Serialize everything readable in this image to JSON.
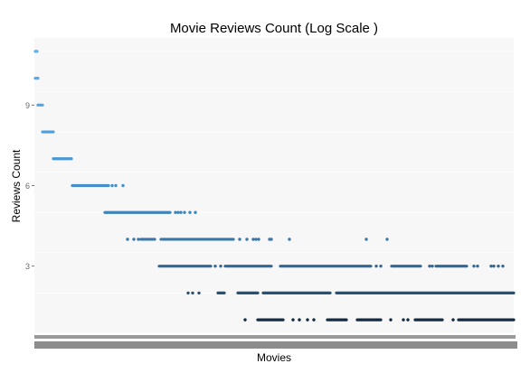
{
  "chart_data": {
    "type": "scatter",
    "title": "Movie Reviews Count (Log Scale )",
    "xlabel": "Movies",
    "ylabel": "Reviews Count",
    "y_ticks": [
      3,
      6,
      9
    ],
    "ylim": [
      0.5,
      11.5
    ],
    "grid": true,
    "legend": "none",
    "colors": {
      "low": "#132b43",
      "high": "#56b1f7",
      "panel": "#f7f7f7",
      "gridline": "#ffffff"
    },
    "color_encoding": "gradient by y value",
    "x_axis_note": "thousands of overlapping movie names rendered as an illegible grey band",
    "series": [
      {
        "y": 11,
        "x": [
          [
            1,
            3
          ]
        ]
      },
      {
        "y": 10,
        "x": [
          [
            1,
            4
          ]
        ]
      },
      {
        "y": 9,
        "x": [
          [
            4,
            9
          ]
        ]
      },
      {
        "y": 8,
        "x": [
          [
            9,
            21
          ]
        ]
      },
      {
        "y": 7,
        "x": [
          [
            21,
            41
          ]
        ]
      },
      {
        "y": 6,
        "x": [
          [
            42,
            82
          ],
          86,
          90,
          98
        ]
      },
      {
        "y": 5,
        "x": [
          [
            78,
            150
          ],
          156,
          159,
          162,
          166,
          172,
          178
        ]
      },
      {
        "y": 4,
        "x": [
          103,
          110,
          115,
          [
            118,
            133
          ],
          [
            140,
            220
          ],
          227,
          235,
          242,
          245,
          248,
          260,
          262,
          282,
          367,
          390
        ]
      },
      {
        "y": 3,
        "x": [
          [
            138,
            195
          ],
          200,
          206,
          [
            211,
            262
          ],
          [
            272,
            372
          ],
          378,
          383,
          [
            395,
            427
          ],
          437,
          440,
          [
            444,
            478
          ],
          486,
          490,
          505,
          508,
          513,
          518
        ]
      },
      {
        "y": 2,
        "x": [
          170,
          175,
          182,
          [
            203,
            210
          ],
          [
            225,
            247
          ],
          [
            253,
            327
          ],
          [
            334,
            530
          ]
        ]
      },
      {
        "y": 1,
        "x": [
          233,
          [
            247,
            275
          ],
          286,
          293,
          302,
          309,
          [
            324,
            345
          ],
          [
            357,
            383
          ],
          394,
          408,
          413,
          [
            421,
            451
          ],
          463,
          [
            469,
            530
          ]
        ]
      }
    ]
  }
}
